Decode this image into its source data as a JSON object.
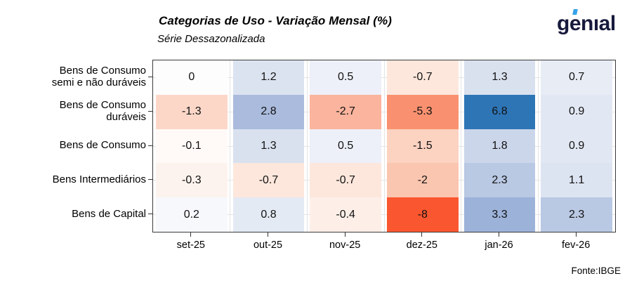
{
  "header": {
    "title": "Categorias de Uso - Variação Mensal (%)",
    "subtitle": "Série Dessazonalizada",
    "logo": {
      "text_start": "g",
      "text_accented": "e",
      "text_end": "nıal",
      "color": "#171a3c",
      "accent_color": "#35a3e8"
    }
  },
  "footer": {
    "source": "Fonte:IBGE"
  },
  "chart_data": {
    "type": "heatmap",
    "title": "Categorias de Uso - Variação Mensal (%)",
    "subtitle": "Série Dessazonalizada",
    "x_labels": [
      "set-25",
      "out-25",
      "nov-25",
      "dez-25",
      "jan-26",
      "fev-26"
    ],
    "rows": [
      {
        "category": "Bens de Consumo semi e não duráveis",
        "category_lines": [
          "Bens de Consumo",
          "semi e não duráveis"
        ],
        "values": [
          0,
          1.2,
          0.5,
          -0.7,
          1.3,
          0.7
        ],
        "colors": [
          "#fdfdfd",
          "#dce3f0",
          "#edf0f8",
          "#fde7dc",
          "#d9e1ef",
          "#e7ecf5"
        ]
      },
      {
        "category": "Bens de Consumo duráveis",
        "category_lines": [
          "Bens de Consumo",
          "duráveis"
        ],
        "values": [
          -1.3,
          2.8,
          -2.7,
          -5.3,
          6.8,
          0.9
        ],
        "colors": [
          "#fcd7c8",
          "#aabbdd",
          "#fbb49d",
          "#f99170",
          "#2e75b6",
          "#e2e8f3"
        ]
      },
      {
        "category": "Bens de Consumo",
        "category_lines": [
          "Bens de Consumo"
        ],
        "values": [
          -0.1,
          1.3,
          0.5,
          -1.5,
          1.8,
          0.9
        ],
        "colors": [
          "#fffaf7",
          "#d9e1ef",
          "#edf0f8",
          "#fcd2c1",
          "#cbd6ea",
          "#e2e8f3"
        ]
      },
      {
        "category": "Bens Intermediários",
        "category_lines": [
          "Bens Intermediários"
        ],
        "values": [
          -0.3,
          -0.7,
          -0.7,
          -2,
          2.3,
          1.1
        ],
        "colors": [
          "#fdf3ee",
          "#fde7dc",
          "#fde7dc",
          "#fbc6b0",
          "#b9c8e3",
          "#dde4f1"
        ]
      },
      {
        "category": "Bens de Capital",
        "category_lines": [
          "Bens de Capital"
        ],
        "values": [
          0.2,
          0.8,
          -0.4,
          -8,
          3.3,
          2.3
        ],
        "colors": [
          "#f6f8fc",
          "#e4eaf4",
          "#fdefe8",
          "#fa562f",
          "#9cb2d9",
          "#b9c8e3"
        ]
      }
    ],
    "colormap": {
      "negative_end": "#fa562f",
      "midpoint_zero": "#ffffff",
      "positive_end": "#2e75b6"
    },
    "legend": "none",
    "grid": "on",
    "source": "Fonte:IBGE"
  }
}
